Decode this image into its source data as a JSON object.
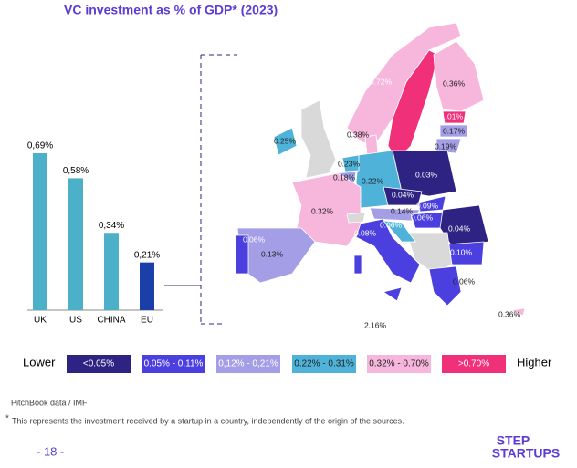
{
  "chart_data": {
    "type": "bar",
    "title": "VC investment as % of GDP* (2023)",
    "categories": [
      "UK",
      "US",
      "CHINA",
      "EU"
    ],
    "values": [
      0.69,
      0.58,
      0.34,
      0.21
    ],
    "value_labels": [
      "0,69%",
      "0,58%",
      "0,34%",
      "0,21%"
    ],
    "colors": [
      "#4bb0c8",
      "#4bb0c8",
      "#4bb0c8",
      "#1b3fa8"
    ]
  },
  "map": {
    "labels": [
      "0.72%",
      "0.36%",
      "1.01%",
      "0.17%",
      "0.19%",
      "0.25%",
      "0.38%",
      "0.23%",
      "0.18%",
      "0.22%",
      "0.03%",
      "0.32%",
      "0.04%",
      "0.09%",
      "0.14%",
      "0.06%",
      "0.06%",
      "0.04%",
      "0.10%",
      "0.08%",
      "0.06%",
      "0.13%",
      "0.06%",
      "0.36%",
      "2.16%"
    ]
  },
  "legend": {
    "lower": "Lower",
    "higher": "Higher",
    "entries": [
      {
        "label": "<0.05%",
        "color": "#2e2383"
      },
      {
        "label": "0.05% - 0.11%",
        "color": "#4b3fe0"
      },
      {
        "label": "0,12% - 0,21%",
        "color": "#a49ee6"
      },
      {
        "label": "0.22% - 0.31%",
        "color": "#4fb3d9"
      },
      {
        "label": "0.32% - 0.70%",
        "color": "#f7b6dc"
      },
      {
        "label": ">0.70%",
        "color": "#f0317a"
      }
    ]
  },
  "footer": {
    "source": "PitchBook data / IMF",
    "footnote_mark": "*",
    "footnote": "This represents the investment received by a startup in a country, independently of the origin of the sources.",
    "page": "- 18 -",
    "logo_top": "STEP",
    "logo_bottom": "STARTUPS"
  }
}
